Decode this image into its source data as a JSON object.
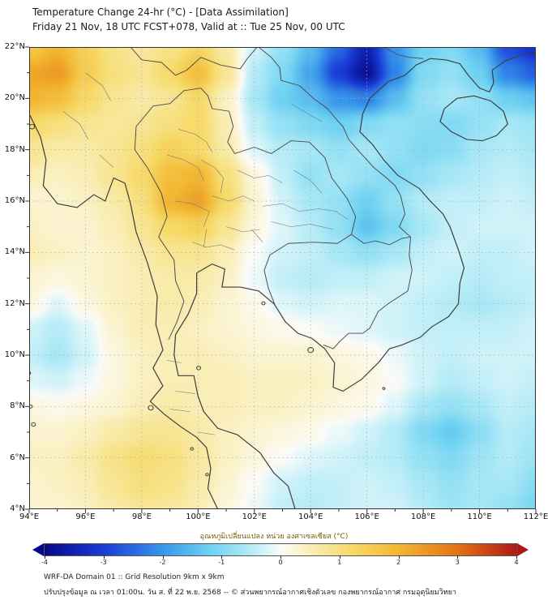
{
  "header": {
    "title": "Temperature Change 24-hr (°C) - [Data Assimilation]",
    "subtitle": "Friday 21 Nov, 18 UTC FCST+078, Valid at :: Tue 25 Nov, 00 UTC"
  },
  "axes": {
    "lat_ticks": [
      {
        "value": 22,
        "label": "22°N"
      },
      {
        "value": 20,
        "label": "20°N"
      },
      {
        "value": 18,
        "label": "18°N"
      },
      {
        "value": 16,
        "label": "16°N"
      },
      {
        "value": 14,
        "label": "14°N"
      },
      {
        "value": 12,
        "label": "12°N"
      },
      {
        "value": 10,
        "label": "10°N"
      },
      {
        "value": 8,
        "label": "8°N"
      },
      {
        "value": 6,
        "label": "6°N"
      },
      {
        "value": 4,
        "label": "4°N"
      }
    ],
    "lon_ticks": [
      {
        "value": 94,
        "label": "94°E"
      },
      {
        "value": 96,
        "label": "96°E"
      },
      {
        "value": 98,
        "label": "98°E"
      },
      {
        "value": 100,
        "label": "100°E"
      },
      {
        "value": 102,
        "label": "102°E"
      },
      {
        "value": 104,
        "label": "104°E"
      },
      {
        "value": 106,
        "label": "106°E"
      },
      {
        "value": 108,
        "label": "108°E"
      },
      {
        "value": 110,
        "label": "110°E"
      },
      {
        "value": 112,
        "label": "112°E"
      }
    ]
  },
  "chart_data": {
    "type": "heatmap",
    "title": "Temperature Change 24-hr (°C) - [Data Assimilation]",
    "subtitle": "Friday 21 Nov, 18 UTC FCST+078, Valid at :: Tue 25 Nov, 00 UTC",
    "x_range": [
      94,
      112
    ],
    "y_range": [
      4,
      22
    ],
    "units": "°C",
    "grid": {
      "lon_start": 94,
      "lon_step": 1,
      "lat_start": 22,
      "lat_step": -1,
      "values": [
        [
          1.6,
          2.0,
          1.4,
          0.9,
          0.7,
          0.9,
          1.3,
          0.6,
          -0.3,
          -0.8,
          -1.5,
          -2.5,
          -3.5,
          -2.0,
          -1.2,
          -1.0,
          -1.5,
          -2.8,
          -3.2
        ],
        [
          2.2,
          2.4,
          1.5,
          1.0,
          0.8,
          1.2,
          1.8,
          0.8,
          -0.5,
          -1.0,
          -1.8,
          -3.0,
          -3.8,
          -2.2,
          -1.0,
          -0.8,
          -1.2,
          -2.2,
          -2.6
        ],
        [
          2.0,
          1.8,
          1.2,
          0.8,
          0.6,
          0.8,
          1.2,
          0.4,
          -0.6,
          -1.2,
          -1.5,
          -2.0,
          -2.2,
          -1.5,
          -0.8,
          -0.6,
          -0.8,
          -1.2,
          -1.4
        ],
        [
          1.2,
          1.0,
          0.8,
          0.7,
          0.8,
          1.0,
          1.2,
          0.5,
          -0.4,
          -0.8,
          -1.0,
          -1.2,
          -1.0,
          -0.8,
          -0.9,
          -1.0,
          -0.8,
          -0.6,
          -0.7
        ],
        [
          0.8,
          0.6,
          0.6,
          0.8,
          1.0,
          1.4,
          1.2,
          0.6,
          -0.2,
          -0.5,
          -0.6,
          -0.8,
          -0.6,
          -0.8,
          -1.0,
          -0.9,
          -0.6,
          -0.5,
          -0.6
        ],
        [
          0.5,
          0.4,
          0.5,
          0.8,
          1.2,
          1.8,
          2.0,
          1.0,
          0.2,
          -0.4,
          -0.8,
          -0.6,
          -0.8,
          -1.0,
          -0.8,
          -0.6,
          -0.5,
          -0.4,
          -0.5
        ],
        [
          0.3,
          0.3,
          0.4,
          0.6,
          1.0,
          2.0,
          2.3,
          1.2,
          0.3,
          -0.3,
          -0.6,
          -0.8,
          -1.2,
          -0.8,
          -0.5,
          -0.4,
          -0.4,
          -0.3,
          -0.4
        ],
        [
          0.4,
          0.3,
          0.3,
          0.5,
          0.8,
          1.2,
          1.4,
          0.8,
          0.2,
          -0.2,
          -0.5,
          -0.8,
          -1.4,
          -1.0,
          -0.6,
          -0.4,
          -0.3,
          -0.3,
          -0.3
        ],
        [
          0.5,
          0.4,
          0.3,
          0.4,
          0.6,
          0.8,
          0.8,
          0.5,
          0.0,
          -0.3,
          -0.4,
          -0.6,
          -0.8,
          -0.6,
          -0.4,
          -0.3,
          -0.4,
          -0.4,
          -0.3
        ],
        [
          0.3,
          0.2,
          0.3,
          0.4,
          0.5,
          0.6,
          0.6,
          0.4,
          -0.1,
          -0.4,
          -0.5,
          -0.4,
          -0.4,
          -0.3,
          -0.3,
          -0.4,
          -0.5,
          -0.4,
          -0.4
        ],
        [
          0.2,
          -0.2,
          0.2,
          0.4,
          0.5,
          0.6,
          0.5,
          0.3,
          0.1,
          -0.2,
          -0.3,
          -0.2,
          -0.2,
          -0.3,
          -0.4,
          -0.5,
          -0.6,
          -0.5,
          -0.4
        ],
        [
          -0.3,
          -0.5,
          -0.2,
          0.3,
          0.5,
          0.5,
          0.4,
          0.3,
          0.2,
          0.1,
          0.0,
          -0.1,
          -0.2,
          -0.3,
          -0.4,
          -0.4,
          -0.4,
          -0.4,
          -0.3
        ],
        [
          -0.4,
          -0.6,
          -0.3,
          0.2,
          0.4,
          0.5,
          0.5,
          0.4,
          0.3,
          0.3,
          0.3,
          0.2,
          0.1,
          -0.1,
          -0.3,
          -0.4,
          -0.3,
          -0.3,
          -0.3
        ],
        [
          -0.2,
          -0.3,
          -0.1,
          0.2,
          0.4,
          0.5,
          0.5,
          0.5,
          0.4,
          0.4,
          0.4,
          0.3,
          0.2,
          0.0,
          -0.3,
          -0.5,
          -0.4,
          -0.3,
          -0.4
        ],
        [
          0.2,
          0.1,
          0.2,
          0.3,
          0.5,
          0.6,
          0.5,
          0.5,
          0.4,
          0.4,
          0.3,
          0.2,
          0.1,
          -0.2,
          -0.6,
          -0.8,
          -0.6,
          -0.4,
          -0.5
        ],
        [
          0.3,
          0.3,
          0.4,
          0.6,
          0.8,
          0.8,
          0.6,
          0.4,
          0.3,
          0.2,
          0.1,
          -0.1,
          -0.3,
          -0.5,
          -1.0,
          -1.3,
          -0.9,
          -0.5,
          -0.6
        ],
        [
          0.4,
          0.4,
          0.6,
          0.9,
          1.1,
          1.0,
          0.7,
          0.4,
          0.2,
          0.0,
          -0.2,
          -0.3,
          -0.4,
          -0.5,
          -0.8,
          -1.0,
          -0.7,
          -0.5,
          -0.7
        ],
        [
          0.3,
          0.4,
          0.5,
          0.8,
          1.0,
          0.9,
          0.6,
          0.3,
          0.0,
          -0.3,
          -0.4,
          -0.4,
          -0.3,
          -0.4,
          -0.6,
          -0.8,
          -0.6,
          -0.6,
          -0.9
        ],
        [
          0.3,
          0.3,
          0.4,
          0.6,
          0.8,
          0.7,
          0.5,
          0.2,
          -0.1,
          -0.4,
          -0.5,
          -0.4,
          -0.3,
          -0.3,
          -0.5,
          -0.7,
          -0.6,
          -0.8,
          -1.1
        ]
      ]
    },
    "colormap": [
      {
        "v": -4.0,
        "c": [
          8,
          8,
          135
        ]
      },
      {
        "v": -3.0,
        "c": [
          25,
          60,
          215
        ]
      },
      {
        "v": -2.0,
        "c": [
          55,
          150,
          235
        ]
      },
      {
        "v": -1.2,
        "c": [
          110,
          210,
          242
        ]
      },
      {
        "v": -0.6,
        "c": [
          168,
          232,
          246
        ]
      },
      {
        "v": -0.2,
        "c": [
          222,
          246,
          250
        ]
      },
      {
        "v": 0.0,
        "c": [
          251,
          251,
          248
        ]
      },
      {
        "v": 0.2,
        "c": [
          252,
          247,
          222
        ]
      },
      {
        "v": 0.6,
        "c": [
          249,
          235,
          168
        ]
      },
      {
        "v": 1.2,
        "c": [
          247,
          218,
          105
        ]
      },
      {
        "v": 2.0,
        "c": [
          243,
          182,
          48
        ]
      },
      {
        "v": 3.0,
        "c": [
          228,
          115,
          22
        ]
      },
      {
        "v": 4.0,
        "c": [
          175,
          25,
          20
        ]
      }
    ],
    "colorbar": {
      "label": "อุณหภูมิเปลี่ยนแปลง หน่วย องศาเซลเซียส (°C)",
      "min": -4,
      "max": 4,
      "ticks": [
        -4,
        -3,
        -2,
        -1,
        0,
        1,
        2,
        3,
        4
      ]
    }
  },
  "footer": {
    "line1": "WRF-DA Domain 01 :: Grid Resolution 9km x 9km",
    "line2": "ปรับปรุงข้อมูล ณ เวลา 01:00น. วัน ส. ที่ 22 พ.ย. 2568 -- © ส่วนพยากรณ์อากาศเชิงตัวเลข กองพยากรณ์อากาศ กรมอุตุนิยมวิทยา"
  }
}
